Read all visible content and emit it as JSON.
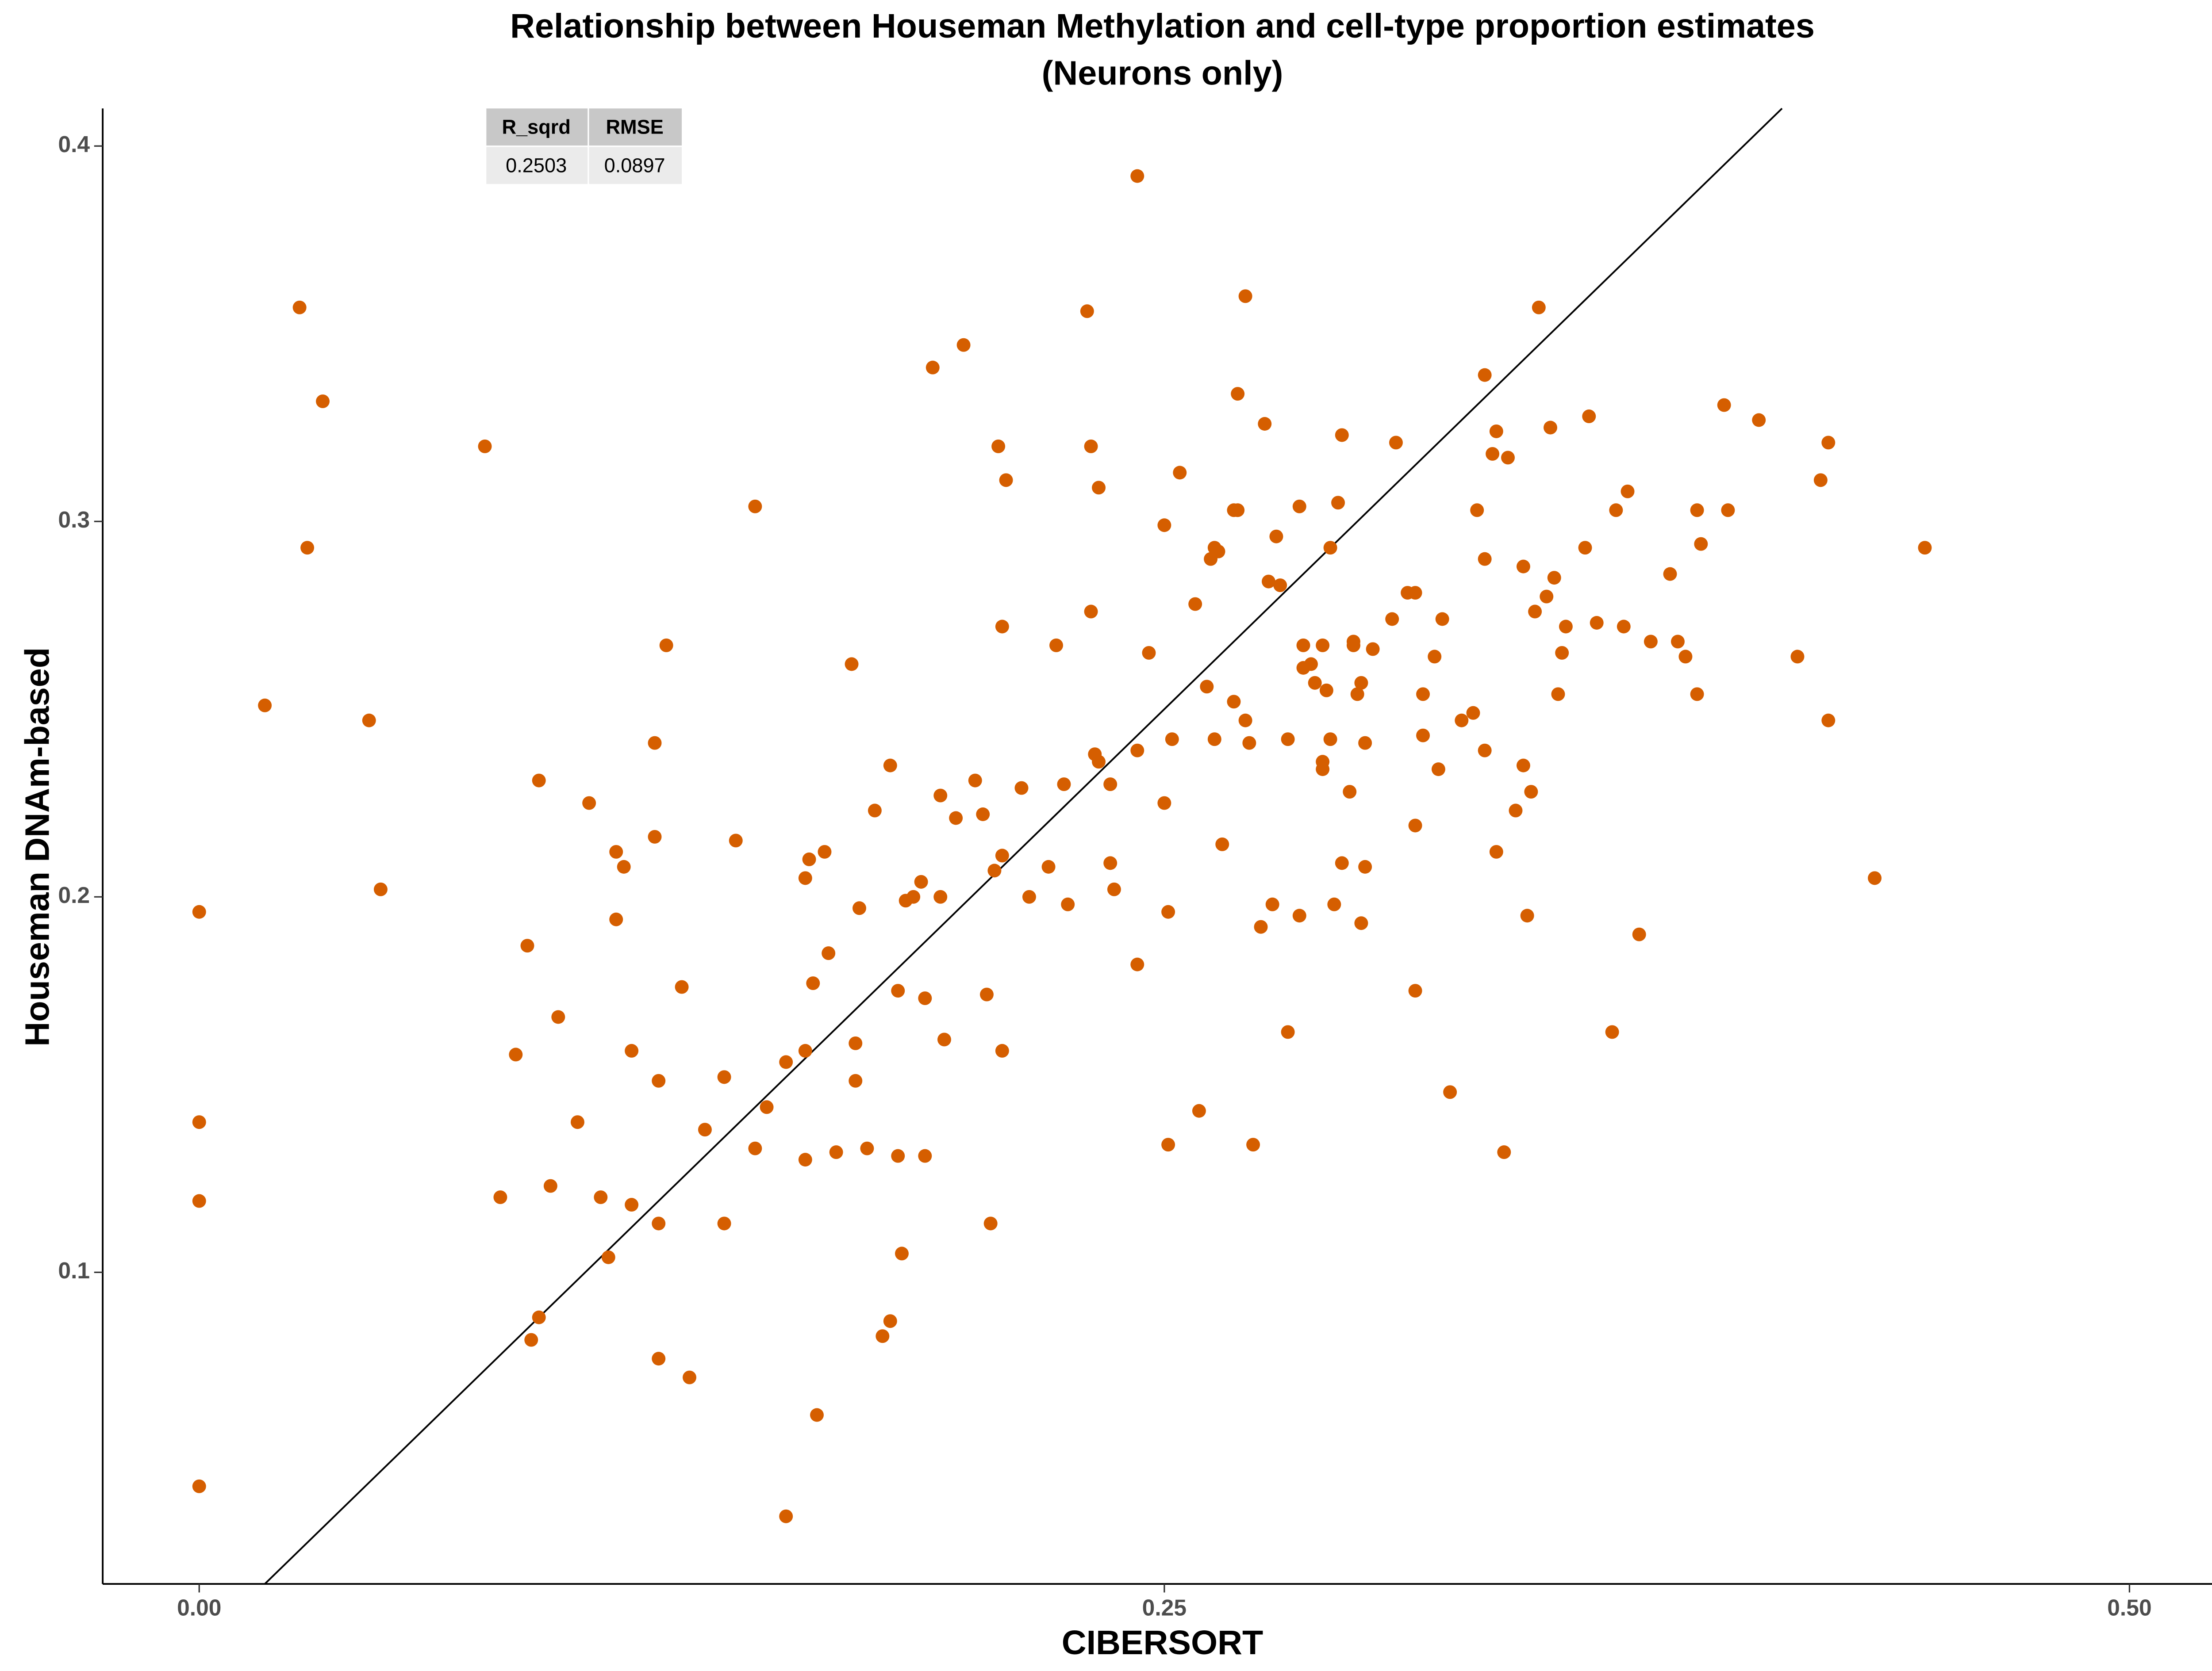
{
  "chart_data": {
    "type": "scatter",
    "title": "Relationship between Houseman Methylation and cell-type proportion estimates",
    "subtitle": "(Neurons only)",
    "x_label": "CIBERSORT",
    "y_label": "Houseman DNAm-based",
    "color": "#d55e00",
    "grid": false,
    "identity_line": true,
    "stats_table": {
      "headers": [
        "R_sqrd",
        "RMSE"
      ],
      "rows": [
        [
          "0.2503",
          "0.0897"
        ]
      ]
    },
    "xlim": [
      -0.025,
      0.524
    ],
    "ylim": [
      0.017,
      0.41
    ],
    "xticks": [
      {
        "value": 0,
        "label": "0.00"
      },
      {
        "value": 0.25,
        "label": "0.25"
      },
      {
        "value": 0.5,
        "label": "0.50"
      }
    ],
    "yticks": [
      0.1,
      0.2,
      0.3,
      0.4
    ],
    "x": [
      0,
      0,
      0,
      0,
      0.017,
      0.026,
      0.028,
      0.032,
      0.044,
      0.047,
      0.074,
      0.078,
      0.082,
      0.085,
      0.086,
      0.088,
      0.088,
      0.091,
      0.093,
      0.098,
      0.101,
      0.104,
      0.106,
      0.108,
      0.108,
      0.11,
      0.112,
      0.112,
      0.118,
      0.118,
      0.119,
      0.119,
      0.119,
      0.121,
      0.125,
      0.127,
      0.131,
      0.136,
      0.136,
      0.139,
      0.144,
      0.144,
      0.147,
      0.152,
      0.152,
      0.157,
      0.157,
      0.157,
      0.158,
      0.159,
      0.16,
      0.162,
      0.163,
      0.165,
      0.169,
      0.17,
      0.17,
      0.171,
      0.173,
      0.175,
      0.177,
      0.179,
      0.179,
      0.181,
      0.181,
      0.182,
      0.183,
      0.185,
      0.187,
      0.188,
      0.188,
      0.19,
      0.192,
      0.192,
      0.193,
      0.196,
      0.198,
      0.201,
      0.203,
      0.204,
      0.205,
      0.206,
      0.207,
      0.208,
      0.208,
      0.208,
      0.209,
      0.213,
      0.215,
      0.22,
      0.222,
      0.224,
      0.225,
      0.23,
      0.231,
      0.231,
      0.232,
      0.233,
      0.233,
      0.236,
      0.236,
      0.237,
      0.243,
      0.243,
      0.243,
      0.246,
      0.25,
      0.25,
      0.251,
      0.251,
      0.252,
      0.254,
      0.258,
      0.259,
      0.261,
      0.262,
      0.263,
      0.263,
      0.264,
      0.265,
      0.268,
      0.268,
      0.269,
      0.269,
      0.271,
      0.271,
      0.272,
      0.273,
      0.275,
      0.276,
      0.277,
      0.278,
      0.279,
      0.28,
      0.282,
      0.282,
      0.285,
      0.285,
      0.286,
      0.286,
      0.288,
      0.289,
      0.291,
      0.291,
      0.291,
      0.292,
      0.293,
      0.293,
      0.294,
      0.295,
      0.296,
      0.296,
      0.298,
      0.299,
      0.299,
      0.3,
      0.301,
      0.301,
      0.302,
      0.302,
      0.304,
      0.309,
      0.31,
      0.313,
      0.315,
      0.315,
      0.315,
      0.317,
      0.317,
      0.32,
      0.321,
      0.322,
      0.324,
      0.327,
      0.33,
      0.331,
      0.333,
      0.333,
      0.333,
      0.335,
      0.336,
      0.336,
      0.338,
      0.339,
      0.341,
      0.343,
      0.343,
      0.344,
      0.345,
      0.346,
      0.347,
      0.349,
      0.35,
      0.351,
      0.352,
      0.353,
      0.354,
      0.359,
      0.36,
      0.362,
      0.366,
      0.367,
      0.369,
      0.37,
      0.373,
      0.376,
      0.381,
      0.383,
      0.385,
      0.388,
      0.388,
      0.389,
      0.395,
      0.396,
      0.404,
      0.414,
      0.42,
      0.422,
      0.422,
      0.434,
      0.447
    ],
    "y": [
      0.196,
      0.14,
      0.119,
      0.043,
      0.251,
      0.357,
      0.293,
      0.332,
      0.247,
      0.202,
      0.32,
      0.12,
      0.158,
      0.187,
      0.082,
      0.231,
      0.088,
      0.123,
      0.168,
      0.14,
      0.225,
      0.12,
      0.104,
      0.212,
      0.194,
      0.208,
      0.159,
      0.118,
      0.241,
      0.216,
      0.151,
      0.077,
      0.113,
      0.267,
      0.176,
      0.072,
      0.138,
      0.152,
      0.113,
      0.215,
      0.304,
      0.133,
      0.144,
      0.156,
      0.035,
      0.13,
      0.159,
      0.205,
      0.21,
      0.177,
      0.062,
      0.212,
      0.185,
      0.132,
      0.262,
      0.151,
      0.161,
      0.197,
      0.133,
      0.223,
      0.083,
      0.235,
      0.087,
      0.175,
      0.131,
      0.105,
      0.199,
      0.2,
      0.204,
      0.131,
      0.173,
      0.341,
      0.2,
      0.227,
      0.162,
      0.221,
      0.347,
      0.231,
      0.222,
      0.174,
      0.113,
      0.207,
      0.32,
      0.159,
      0.272,
      0.211,
      0.311,
      0.229,
      0.2,
      0.208,
      0.267,
      0.23,
      0.198,
      0.356,
      0.276,
      0.32,
      0.238,
      0.309,
      0.236,
      0.209,
      0.23,
      0.202,
      0.392,
      0.239,
      0.182,
      0.265,
      0.299,
      0.225,
      0.196,
      0.134,
      0.242,
      0.313,
      0.278,
      0.143,
      0.256,
      0.29,
      0.242,
      0.293,
      0.292,
      0.214,
      0.303,
      0.252,
      0.334,
      0.303,
      0.36,
      0.247,
      0.241,
      0.134,
      0.192,
      0.326,
      0.284,
      0.198,
      0.296,
      0.283,
      0.242,
      0.164,
      0.304,
      0.195,
      0.261,
      0.267,
      0.262,
      0.257,
      0.267,
      0.236,
      0.234,
      0.255,
      0.293,
      0.242,
      0.198,
      0.305,
      0.323,
      0.209,
      0.228,
      0.268,
      0.267,
      0.254,
      0.193,
      0.257,
      0.241,
      0.208,
      0.266,
      0.274,
      0.321,
      0.281,
      0.175,
      0.281,
      0.219,
      0.243,
      0.254,
      0.264,
      0.234,
      0.274,
      0.148,
      0.247,
      0.249,
      0.303,
      0.29,
      0.339,
      0.239,
      0.318,
      0.212,
      0.324,
      0.132,
      0.317,
      0.223,
      0.288,
      0.235,
      0.195,
      0.228,
      0.276,
      0.357,
      0.28,
      0.325,
      0.285,
      0.254,
      0.265,
      0.272,
      0.293,
      0.328,
      0.273,
      0.164,
      0.303,
      0.272,
      0.308,
      0.19,
      0.268,
      0.286,
      0.268,
      0.264,
      0.254,
      0.303,
      0.294,
      0.331,
      0.303,
      0.327,
      0.264,
      0.311,
      0.247,
      0.321,
      0.205,
      0.293
    ]
  }
}
